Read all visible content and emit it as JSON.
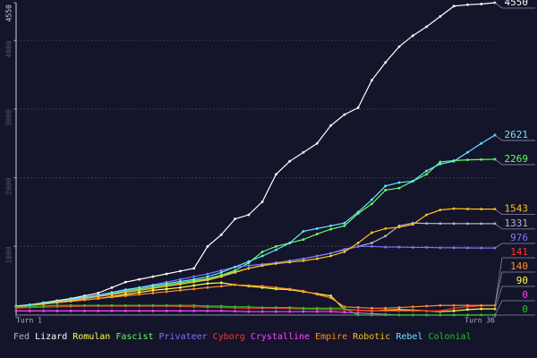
{
  "chart_data": {
    "type": "line",
    "x": [
      1,
      2,
      3,
      4,
      5,
      6,
      7,
      8,
      9,
      10,
      11,
      12,
      13,
      14,
      15,
      16,
      17,
      18,
      19,
      20,
      21,
      22,
      23,
      24,
      25,
      26,
      27,
      28,
      29,
      30,
      31,
      32,
      33,
      34,
      35,
      36
    ],
    "xlim": [
      1,
      36
    ],
    "xticks": [
      {
        "value": 1,
        "label": "Turn 1"
      },
      {
        "value": 36,
        "label": "Turn 36"
      }
    ],
    "ylim": [
      0,
      4550
    ],
    "yticks": [
      1000,
      2000,
      3000,
      4000,
      4550
    ],
    "grid": true,
    "legend": "bottom",
    "series": [
      {
        "name": "Fed",
        "color": "#b4b4c8",
        "values": [
          130,
          145,
          165,
          190,
          215,
          240,
          270,
          300,
          330,
          360,
          390,
          420,
          450,
          480,
          520,
          580,
          630,
          680,
          720,
          760,
          790,
          820,
          860,
          900,
          950,
          1000,
          1050,
          1150,
          1300,
          1340,
          1335,
          1333,
          1332,
          1331,
          1331,
          1331
        ]
      },
      {
        "name": "Lizard",
        "color": "#ffffff",
        "values": [
          130,
          150,
          180,
          210,
          240,
          280,
          320,
          400,
          480,
          520,
          560,
          600,
          640,
          680,
          1000,
          1170,
          1400,
          1460,
          1650,
          2050,
          2240,
          2370,
          2500,
          2760,
          2920,
          3020,
          3420,
          3680,
          3910,
          4070,
          4200,
          4350,
          4500,
          4520,
          4530,
          4550
        ]
      },
      {
        "name": "Romulan",
        "color": "#ffff44",
        "values": [
          120,
          140,
          160,
          180,
          200,
          220,
          240,
          270,
          300,
          330,
          360,
          380,
          400,
          430,
          460,
          470,
          440,
          420,
          400,
          380,
          370,
          340,
          310,
          280,
          80,
          70,
          60,
          70,
          80,
          70,
          60,
          50,
          60,
          80,
          90,
          90
        ]
      },
      {
        "name": "Fascist",
        "color": "#66ff66",
        "values": [
          130,
          150,
          170,
          195,
          220,
          250,
          280,
          310,
          350,
          380,
          410,
          440,
          470,
          500,
          530,
          580,
          650,
          760,
          920,
          1000,
          1050,
          1100,
          1180,
          1250,
          1300,
          1480,
          1620,
          1820,
          1850,
          1950,
          2050,
          2230,
          2250,
          2260,
          2265,
          2269
        ]
      },
      {
        "name": "Privateer",
        "color": "#7878ff",
        "values": [
          130,
          150,
          170,
          195,
          220,
          250,
          280,
          320,
          360,
          400,
          440,
          480,
          520,
          560,
          600,
          650,
          700,
          720,
          740,
          760,
          790,
          820,
          860,
          900,
          960,
          1000,
          1000,
          990,
          990,
          985,
          985,
          980,
          980,
          978,
          976,
          976
        ]
      },
      {
        "name": "Cyborg",
        "color": "#ff3333",
        "values": [
          100,
          110,
          115,
          120,
          125,
          130,
          130,
          130,
          130,
          130,
          130,
          130,
          125,
          120,
          115,
          110,
          105,
          100,
          100,
          100,
          95,
          90,
          85,
          80,
          75,
          70,
          65,
          60,
          60,
          60,
          60,
          60,
          100,
          120,
          135,
          141
        ]
      },
      {
        "name": "Crystalline",
        "color": "#ff44ff",
        "values": [
          60,
          60,
          60,
          60,
          60,
          60,
          60,
          60,
          60,
          60,
          60,
          60,
          60,
          60,
          60,
          60,
          55,
          50,
          50,
          50,
          50,
          50,
          50,
          50,
          40,
          30,
          20,
          10,
          0,
          0,
          0,
          0,
          0,
          0,
          0,
          0
        ]
      },
      {
        "name": "Empire",
        "color": "#ff8c28",
        "values": [
          120,
          140,
          160,
          180,
          200,
          220,
          240,
          260,
          280,
          300,
          320,
          340,
          360,
          380,
          400,
          420,
          440,
          430,
          420,
          400,
          380,
          350,
          300,
          250,
          120,
          110,
          100,
          100,
          110,
          120,
          130,
          140,
          140,
          140,
          140,
          140
        ]
      },
      {
        "name": "Robotic",
        "color": "#ffc020",
        "values": [
          130,
          145,
          165,
          190,
          210,
          240,
          270,
          300,
          330,
          360,
          390,
          420,
          450,
          480,
          510,
          560,
          620,
          680,
          720,
          750,
          770,
          790,
          820,
          860,
          920,
          1050,
          1200,
          1260,
          1280,
          1320,
          1460,
          1530,
          1550,
          1545,
          1543,
          1543
        ]
      },
      {
        "name": "Rebel",
        "color": "#66e6ff",
        "values": [
          130,
          150,
          175,
          200,
          230,
          260,
          290,
          330,
          370,
          400,
          430,
          460,
          490,
          520,
          560,
          620,
          700,
          780,
          860,
          950,
          1050,
          1220,
          1260,
          1300,
          1340,
          1500,
          1680,
          1880,
          1930,
          1950,
          2100,
          2200,
          2240,
          2370,
          2500,
          2621
        ]
      },
      {
        "name": "Colonial",
        "color": "#22c422",
        "values": [
          110,
          120,
          130,
          140,
          140,
          140,
          140,
          140,
          140,
          140,
          140,
          140,
          140,
          140,
          130,
          130,
          120,
          120,
          110,
          110,
          110,
          100,
          100,
          100,
          100,
          0,
          0,
          0,
          0,
          0,
          0,
          0,
          0,
          0,
          0,
          0
        ]
      }
    ]
  }
}
